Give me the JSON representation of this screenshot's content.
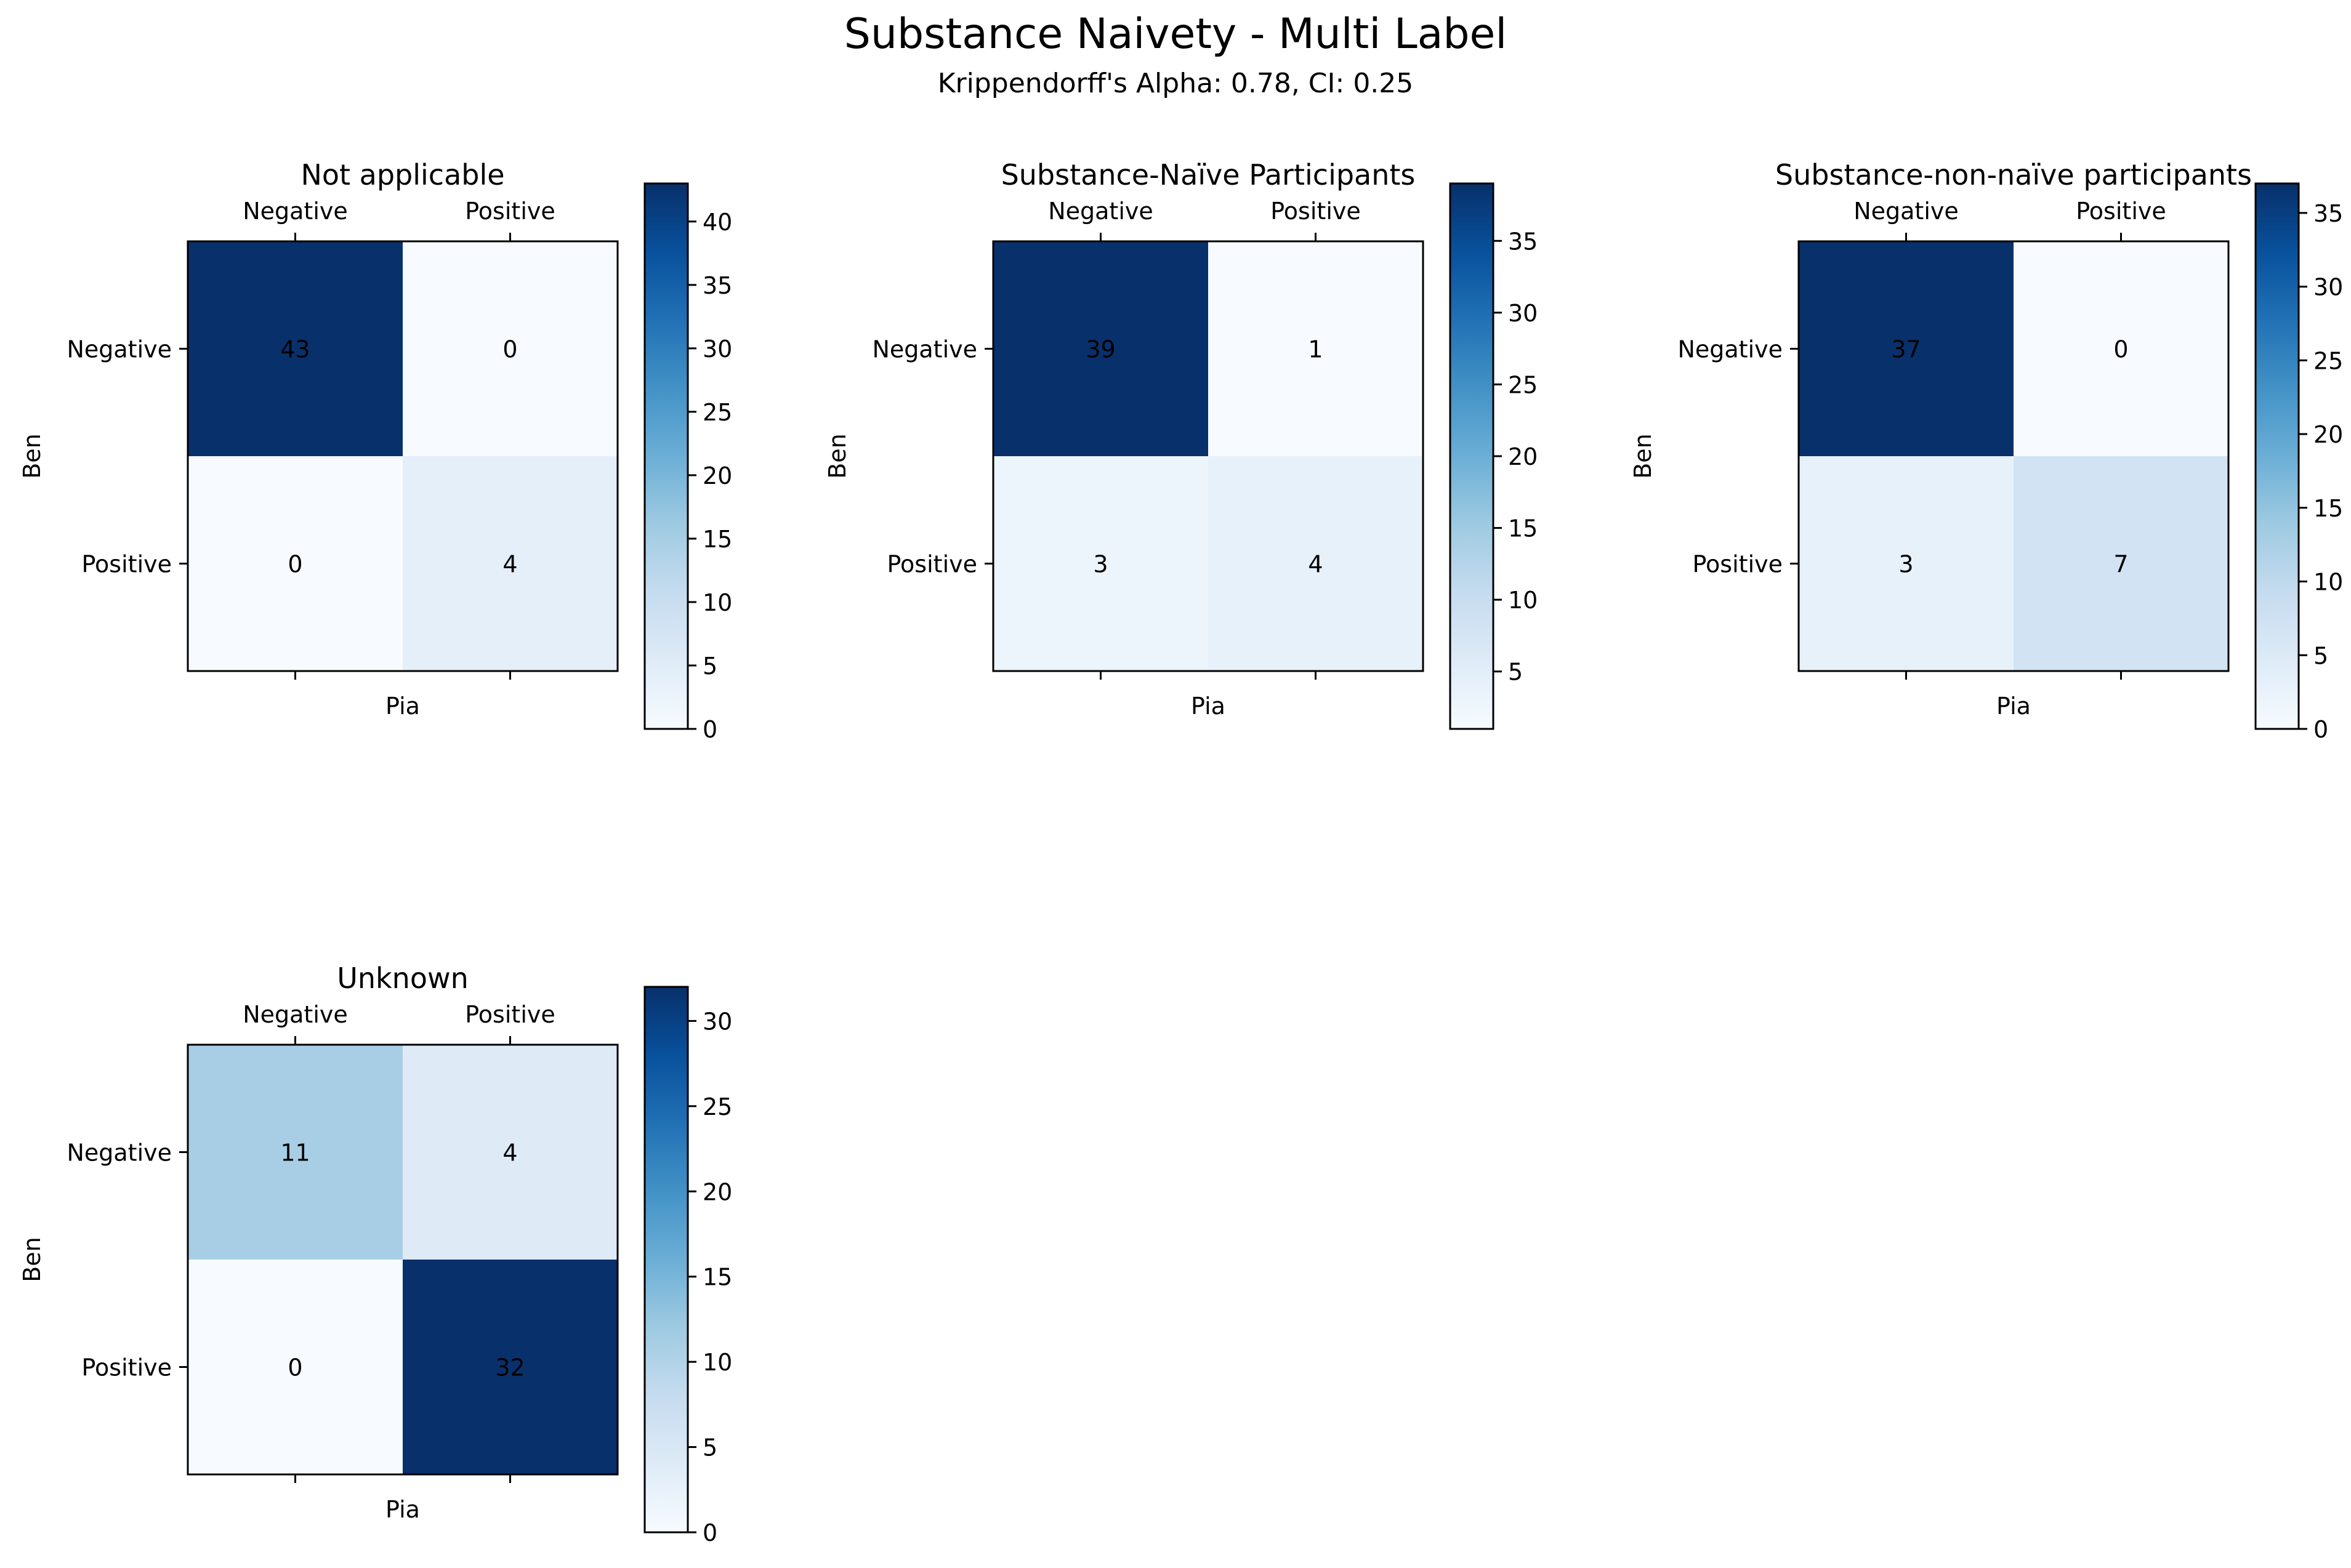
{
  "figure": {
    "title": "Substance Naivety - Multi Label",
    "subtitle": "Krippendorff's Alpha: 0.78, CI: 0.25"
  },
  "colormap": {
    "name": "Blues",
    "stops": [
      "#f7fbff",
      "#deebf7",
      "#c6dbef",
      "#9ecae1",
      "#6baed6",
      "#4292c6",
      "#2171b5",
      "#08519c",
      "#08306b"
    ]
  },
  "chart_data": [
    {
      "type": "heatmap",
      "title": "Not applicable",
      "xlabel": "Pia",
      "ylabel": "Ben",
      "x_categories": [
        "Negative",
        "Positive"
      ],
      "y_categories": [
        "Negative",
        "Positive"
      ],
      "values": [
        [
          43,
          0
        ],
        [
          0,
          4
        ]
      ],
      "color_range": [
        0,
        43
      ],
      "colorbar_ticks": [
        0,
        5,
        10,
        15,
        20,
        25,
        30,
        35,
        40
      ]
    },
    {
      "type": "heatmap",
      "title": "Substance-Naïve Participants",
      "xlabel": "Pia",
      "ylabel": "Ben",
      "x_categories": [
        "Negative",
        "Positive"
      ],
      "y_categories": [
        "Negative",
        "Positive"
      ],
      "values": [
        [
          39,
          1
        ],
        [
          3,
          4
        ]
      ],
      "color_range": [
        1,
        39
      ],
      "colorbar_ticks": [
        5,
        10,
        15,
        20,
        25,
        30,
        35
      ]
    },
    {
      "type": "heatmap",
      "title": "Substance-non-naïve participants",
      "xlabel": "Pia",
      "ylabel": "Ben",
      "x_categories": [
        "Negative",
        "Positive"
      ],
      "y_categories": [
        "Negative",
        "Positive"
      ],
      "values": [
        [
          37,
          0
        ],
        [
          3,
          7
        ]
      ],
      "color_range": [
        0,
        37
      ],
      "colorbar_ticks": [
        0,
        5,
        10,
        15,
        20,
        25,
        30,
        35
      ]
    },
    {
      "type": "heatmap",
      "title": "Unknown",
      "xlabel": "Pia",
      "ylabel": "Ben",
      "x_categories": [
        "Negative",
        "Positive"
      ],
      "y_categories": [
        "Negative",
        "Positive"
      ],
      "values": [
        [
          11,
          4
        ],
        [
          0,
          32
        ]
      ],
      "color_range": [
        0,
        32
      ],
      "colorbar_ticks": [
        0,
        5,
        10,
        15,
        20,
        25,
        30
      ]
    }
  ]
}
